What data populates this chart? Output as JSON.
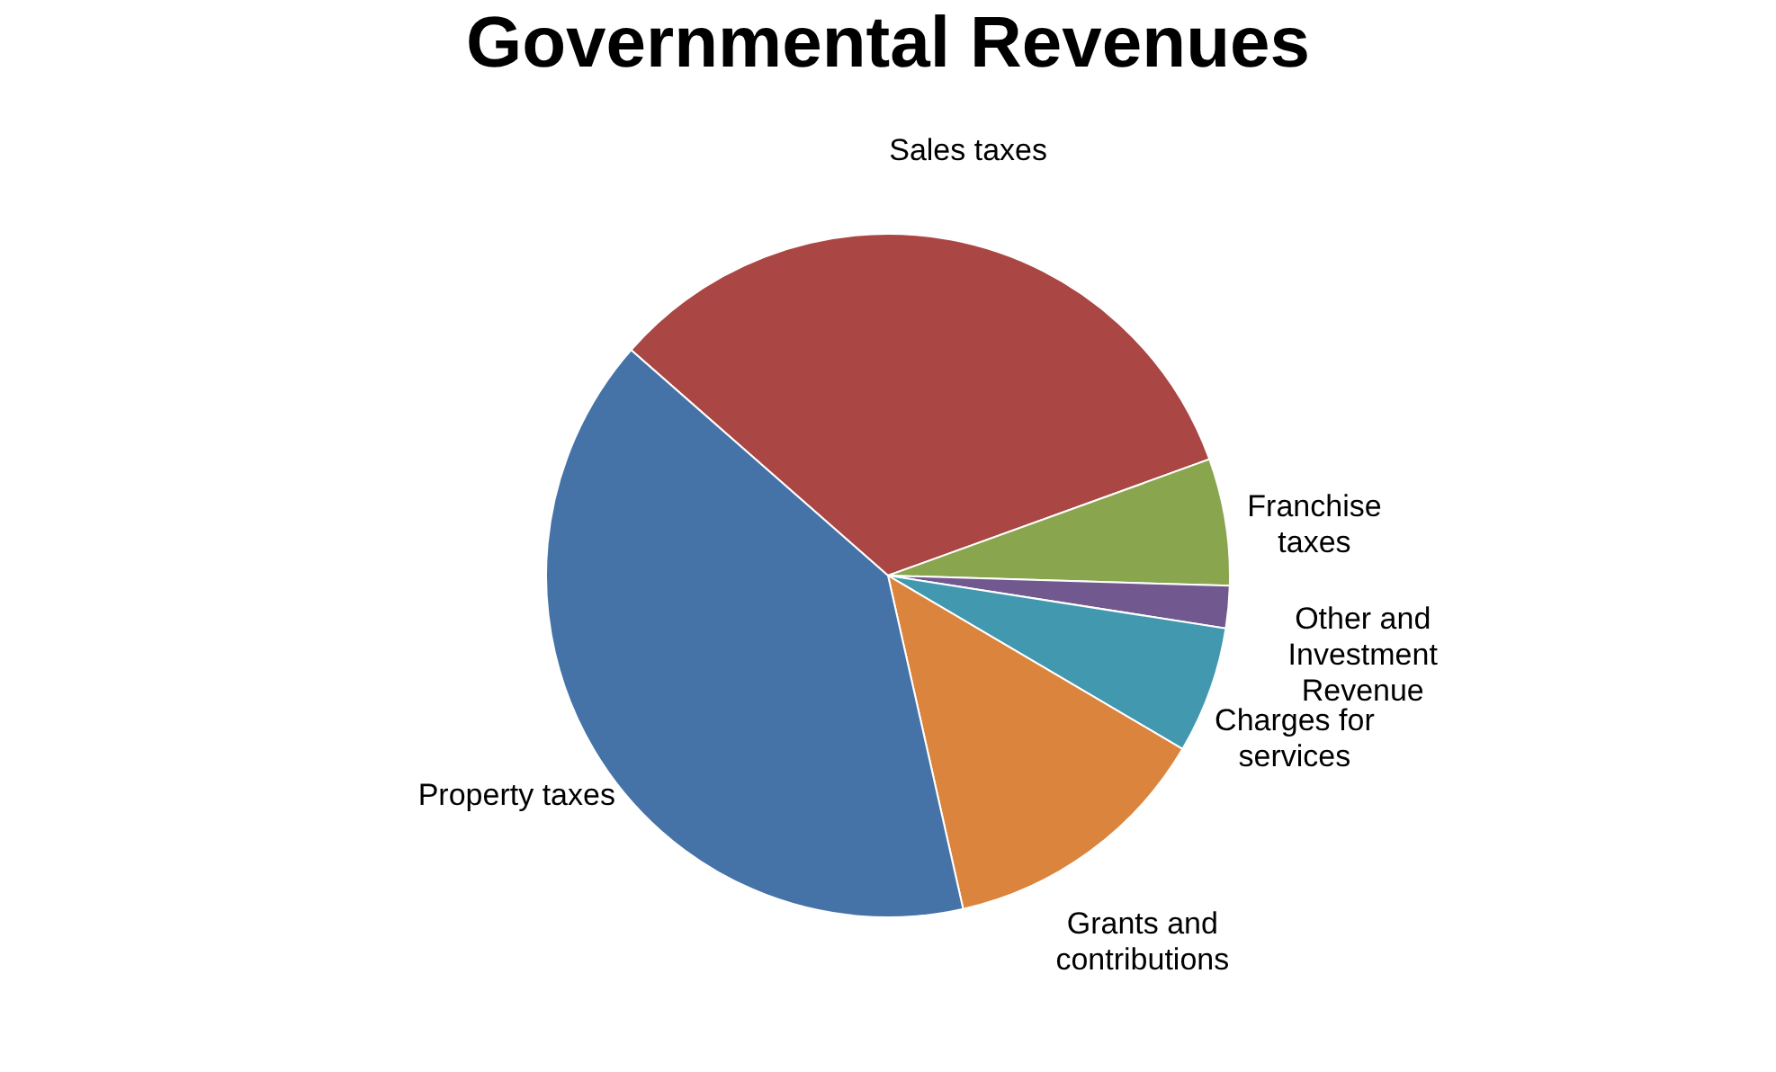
{
  "chart_data": {
    "type": "pie",
    "title": "Governmental Revenues",
    "categories": [
      "Sales taxes",
      "Franchise taxes",
      "Other and Investment Revenue",
      "Charges for services",
      "Grants and contributions",
      "Property taxes"
    ],
    "values": [
      33,
      6,
      2,
      6,
      13,
      40
    ],
    "colors": [
      "#aa4643",
      "#89a54e",
      "#71588f",
      "#4198af",
      "#db843d",
      "#4572a7"
    ]
  }
}
